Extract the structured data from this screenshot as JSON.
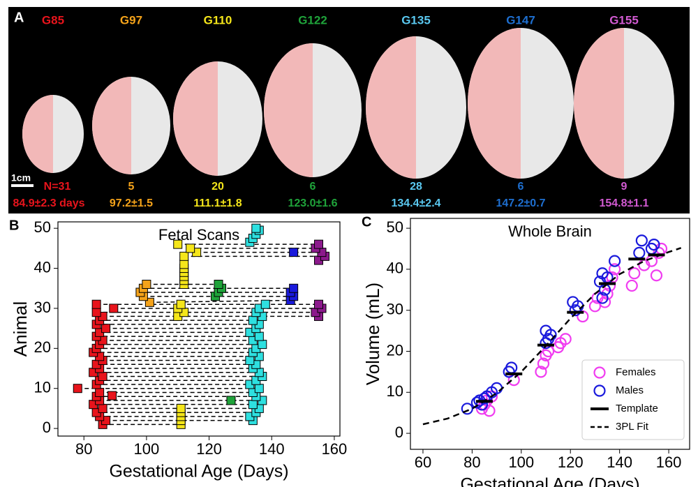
{
  "panel_a": {
    "letter": "A",
    "scale_bar": "1cm",
    "groups": [
      {
        "label": "G85",
        "color": "#e8141c",
        "n": "N=31",
        "age": "84.9±2.3 days"
      },
      {
        "label": "G97",
        "color": "#f5a31a",
        "n": "5",
        "age": "97.2±1.5"
      },
      {
        "label": "G110",
        "color": "#f5e61a",
        "n": "20",
        "age": "111.1±1.8"
      },
      {
        "label": "G122",
        "color": "#1fa33a",
        "n": "6",
        "age": "123.0±1.6"
      },
      {
        "label": "G135",
        "color": "#5ac8f0",
        "n": "28",
        "age": "134.4±2.4"
      },
      {
        "label": "G147",
        "color": "#1e6fd0",
        "n": "6",
        "age": "147.2±0.7"
      },
      {
        "label": "G155",
        "color": "#d25ad2",
        "n": "9",
        "age": "154.8±1.1"
      }
    ]
  },
  "chart_data": [
    {
      "type": "scatter",
      "letter": "B",
      "title": "Fetal Scans",
      "x_label": "Gestational Age (Days)",
      "y_label": "Animal",
      "xlim": [
        71.7,
        161.8
      ],
      "ylim": [
        -1.9,
        51.6
      ],
      "xticks": [
        80,
        100,
        120,
        140,
        160
      ],
      "yticks": [
        0,
        10,
        20,
        30,
        40,
        50
      ],
      "marker": "square",
      "connectors": "dashed",
      "series": [
        {
          "color": "#e8141c",
          "x": [
            86,
            87,
            85,
            84,
            86,
            83,
            85,
            84,
            89,
            85,
            78,
            84,
            85,
            86,
            83,
            85,
            84,
            86,
            85,
            83,
            84,
            85,
            86,
            84,
            85,
            87,
            84,
            85,
            86,
            84,
            89.5,
            84
          ],
          "values": [
            1,
            2,
            3,
            4,
            5,
            6,
            7,
            8,
            8.2,
            9,
            10,
            11,
            12,
            13,
            14,
            15,
            16,
            17,
            18,
            19,
            20,
            21,
            22,
            23,
            24,
            25,
            26,
            27,
            28,
            29,
            30,
            31
          ]
        },
        {
          "color": "#f5a31a",
          "x": [
            101,
            99,
            98,
            99,
            100
          ],
          "values": [
            31.5,
            33,
            34,
            35,
            36
          ]
        },
        {
          "color": "#f5e61a",
          "x": [
            111,
            111,
            111,
            111,
            111,
            110,
            112,
            110,
            111,
            112,
            112,
            112,
            112,
            112,
            112,
            112,
            116,
            114,
            110
          ],
          "values": [
            1,
            2,
            3,
            4,
            5,
            28,
            29,
            30,
            31,
            36,
            37,
            38,
            39,
            40,
            41,
            43,
            44,
            45,
            46
          ]
        },
        {
          "color": "#1fa33a",
          "x": [
            127,
            122,
            123,
            124,
            123
          ],
          "values": [
            7,
            33,
            34,
            35,
            36
          ]
        },
        {
          "color": "#2ee0e0",
          "x": [
            134,
            133,
            135,
            136,
            134,
            137,
            135,
            134,
            136,
            133,
            135,
            137,
            136,
            134,
            135,
            133,
            136,
            134,
            135,
            137,
            134,
            136,
            133,
            135,
            136,
            134,
            137,
            135,
            136,
            138,
            133,
            134,
            135,
            136,
            135
          ],
          "values": [
            2,
            3,
            4,
            5,
            6,
            7,
            8,
            9,
            10,
            11,
            12,
            13,
            14,
            15,
            16,
            17,
            18,
            19,
            20,
            21,
            22,
            23,
            24,
            25,
            26,
            27,
            28,
            29,
            30,
            31,
            46.5,
            47.5,
            48.5,
            49.5,
            50
          ]
        },
        {
          "color": "#1a1adc",
          "x": [
            146,
            147,
            146,
            147,
            147
          ],
          "values": [
            32,
            33,
            34,
            35,
            44
          ]
        },
        {
          "color": "#8c1a8c",
          "x": [
            155,
            154,
            156,
            155,
            155,
            157,
            156,
            154,
            155
          ],
          "values": [
            28,
            29,
            30,
            31,
            42,
            43,
            44,
            45,
            46
          ]
        }
      ]
    },
    {
      "type": "scatter",
      "letter": "C",
      "title": "Whole Brain",
      "x_label": "Gestational Age (Days)",
      "y_label": "Volume (mL)",
      "xlim": [
        54.9,
        168.5
      ],
      "ylim": [
        -3.9,
        52.4
      ],
      "xticks": [
        60,
        80,
        100,
        120,
        140,
        160
      ],
      "yticks": [
        0,
        10,
        20,
        30,
        40,
        50
      ],
      "legend": "lower right",
      "series": [
        {
          "name": "Females",
          "color": "#f03cf0",
          "marker": "circle",
          "x": [
            84,
            85,
            86,
            87,
            88,
            97,
            108,
            109,
            110,
            111,
            115,
            116,
            118,
            125,
            130,
            131,
            134,
            135,
            136,
            137,
            138,
            145,
            146,
            150,
            153,
            155,
            156,
            157
          ],
          "values": [
            6,
            7,
            8,
            5.5,
            9,
            13,
            15,
            17,
            19,
            20,
            21,
            22,
            23,
            28.5,
            31,
            33,
            32,
            34,
            36,
            38,
            40,
            36,
            39,
            41,
            42,
            38.5,
            44,
            45
          ]
        },
        {
          "name": "Males",
          "color": "#1a1adc",
          "marker": "circle",
          "x": [
            78,
            82,
            83,
            84,
            85,
            86,
            88,
            90,
            95,
            96,
            110,
            111,
            112,
            110,
            122,
            123,
            121,
            133,
            134,
            132,
            135,
            133,
            138,
            148,
            149,
            153,
            154
          ],
          "values": [
            6,
            7.5,
            8,
            7,
            8.5,
            9,
            10,
            11,
            15,
            16,
            22,
            23,
            24,
            25,
            30,
            31,
            32,
            33,
            35,
            37,
            38,
            39,
            42,
            44,
            47,
            45,
            46
          ]
        },
        {
          "name": "Template",
          "color": "#000000",
          "marker": "hline",
          "x": [
            85,
            97,
            110,
            122,
            135,
            147,
            155
          ],
          "values": [
            7.8,
            14.5,
            21.5,
            29.5,
            36.5,
            42.5,
            43.5
          ]
        },
        {
          "name": "3PL Fit",
          "color": "#000000",
          "marker": "dashed-line",
          "x": [
            60,
            70,
            80,
            90,
            100,
            110,
            120,
            130,
            140,
            150,
            160,
            165
          ],
          "values": [
            2.2,
            3.6,
            6,
            9.8,
            15,
            21.3,
            28,
            34,
            38.8,
            42,
            44.2,
            45.2
          ]
        }
      ]
    }
  ]
}
